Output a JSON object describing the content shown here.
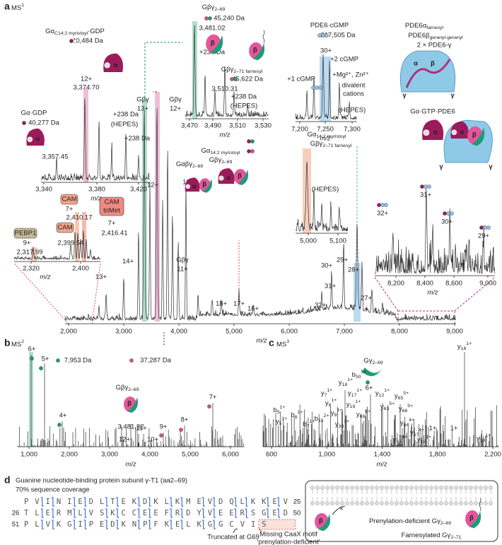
{
  "cartoon": {
    "alpha": "α",
    "beta": "β",
    "gamma": "γ"
  },
  "panel_a": {
    "label": "a",
    "title": {
      "text": "MS",
      "sup": "1"
    },
    "x_label": "m/z",
    "x_ticks": [
      "2,000",
      "3,000",
      "4,000",
      "5,000",
      "6,000",
      "7,000",
      "8,000",
      "9,000"
    ],
    "labels": [
      "Gβγ",
      "13+",
      "Gβγ",
      "12+",
      "13+",
      "14+",
      "12+",
      "11+",
      "Gβγ",
      "11+",
      "18+",
      "17+",
      "16+",
      "32+",
      "31+",
      "30+",
      "29+",
      "28+",
      "27+",
      {
        "text": "Gαβγ",
        "sub": "2–69"
      },
      {
        "text": "Gα",
        "sub": "14:2 myristoyl"
      },
      {
        "text": "Gβγ",
        "sub": "2–69"
      }
    ],
    "protein_labels": [
      {
        "text": "PDE6α",
        "sub": "farnesyl"
      },
      {
        "text": "PDE6β",
        "sub": "geranyl-geranyl"
      },
      "2 × PDE6-γ",
      "Gα·GTP·PDE6"
    ],
    "insets": [
      {
        "labels": [
          {
            "text": "Gα",
            "sub": "C14:2 myristoyl",
            "tail": "·GDP"
          },
          "40,484 Da",
          "12+",
          "3,374.70",
          "Gα·GDP",
          "40,277 Da",
          "+238 Da",
          "(HEPES)",
          "+238 Da",
          "3,357.45"
        ],
        "x_ticks": [
          "3,340",
          "3,380",
          "3,420"
        ],
        "x_label": "m/z"
      },
      {
        "labels": [
          {
            "text": "Gβγ",
            "sub": "2–69"
          },
          "45,240 Da",
          "3,481.02",
          "+238 Da",
          {
            "text": "Gβγ",
            "sub": "2–71 farnesyl"
          },
          "45,622 Da",
          "3,510.31",
          "+238 Da",
          "(HEPES)"
        ],
        "x_ticks": [
          "3,470",
          "3,490",
          "3,510",
          "3,530"
        ],
        "x_label": "m/z"
      },
      {
        "labels": [
          "PDE6·cGMP",
          "217,505 Da",
          "30+",
          "+2 cGMP",
          "+1 cGMP",
          "+Mg²⁺, Zn²⁺",
          "divalent",
          "cations",
          "(HEPES)"
        ],
        "x_ticks": [
          "7,200",
          "7,250",
          "7,300"
        ],
        "x_label": "m/z"
      },
      {
        "labels": [
          {
            "text": "Gα",
            "sub": "14:2 myristoyl"
          },
          {
            "text": "Gβγ",
            "sub": "2–71 farnesyl"
          },
          "(HEPES)"
        ],
        "x_ticks": [
          "5,000",
          "5,100"
        ]
      },
      {
        "labels": [
          "PEBP1",
          "9+",
          "2,317.99",
          "CAM",
          "7+",
          "2,410.17",
          "CAM",
          "2,399.54",
          "CAM",
          "triMet",
          "7+",
          "2,416.41"
        ],
        "x_ticks": [
          "2,320",
          "2,400"
        ],
        "x_label": "m/z"
      },
      {
        "labels": [
          "32+",
          "31+",
          "30+",
          "29+"
        ],
        "x_ticks": [
          "8,200",
          "8,400",
          "8,600",
          "9,000"
        ],
        "x_label": "m/z"
      }
    ]
  },
  "panel_b": {
    "label": "b",
    "title": {
      "text": "MS",
      "sup": "2"
    },
    "x_label": "m/z",
    "x_ticks": [
      "1,000",
      "2,000",
      "3,000",
      "4,000",
      "5,000",
      "6,000"
    ],
    "labels": [
      "6+",
      "5+",
      "7,953 Da",
      "37,287 Da",
      {
        "text": "Gβγ",
        "sub": "2–69"
      },
      "3,481.32",
      "8+",
      "7+",
      "4+",
      "11+",
      "12+",
      "10+",
      "9+"
    ]
  },
  "panel_c": {
    "label": "c",
    "title": {
      "text": "MS",
      "sup": "3"
    },
    "x_label": "m/z",
    "x_ticks": [
      "600",
      "1,000",
      "1,400",
      "1,800",
      "2,200"
    ],
    "labels": [
      {
        "text": "Gγ",
        "sub": "2–69"
      },
      "6+"
    ],
    "ions": [
      {
        "text": "y",
        "sub": "18",
        "sup": "1+"
      },
      {
        "text": "b",
        "sub": "5",
        "sup": "1+"
      },
      {
        "text": "y",
        "sub": "5",
        "sup": "1+"
      },
      {
        "text": "b",
        "sub": "6",
        "sup": "1+"
      },
      {
        "text": "b",
        "sub": "7",
        "sup": "1+"
      },
      {
        "text": "b",
        "sub": "15",
        "sup": "2+"
      },
      {
        "text": "y",
        "sub": "7",
        "sup": "1+"
      },
      {
        "text": "y",
        "sub": "8",
        "sup": "1+"
      },
      {
        "text": "y",
        "sub": "9",
        "sup": "1+"
      },
      {
        "text": "y",
        "sub": "30",
        "sup": "1+"
      },
      {
        "text": "y",
        "sub": "18",
        "sup": "1+"
      },
      {
        "text": "y",
        "sub": "17",
        "sup": "1+"
      },
      {
        "text": "y",
        "sub": "19",
        "sup": "1+"
      },
      {
        "text": "b",
        "sub": "50",
        "sup": "5+"
      },
      {
        "text": "y",
        "sub": "66",
        "sup": "6+"
      },
      {
        "text": "y",
        "sub": "12",
        "sup": "1+"
      },
      {
        "text": "y",
        "sub": "63",
        "sup": "5+"
      },
      {
        "text": "y",
        "sub": "65",
        "sup": "5+"
      },
      {
        "text": "y",
        "sub": "66",
        "sup": "5+"
      },
      {
        "text": "y",
        "sub": "54",
        "sup": "4+"
      },
      {
        "text": "y",
        "sub": "57",
        "sup": "4+"
      },
      {
        "text": "y",
        "sub": "55",
        "sup": "4+"
      },
      {
        "text": "y",
        "sub": "15",
        "sup": "1+"
      },
      {
        "text": "y",
        "sub": "19",
        "sup": "1+"
      },
      "1+",
      "1+"
    ]
  },
  "panel_d": {
    "label": "d",
    "title": "Guanine nucleotide-binding protein subunit γ-T1 (aa2–69)",
    "coverage": "70% sequence coverage",
    "rows": [
      {
        "sequence": "PVINIEDLTEKDKLKMEVDQLKKEV",
        "end": "25"
      },
      {
        "start": "26",
        "sequence": "TLERMLVSKCCEEFRDYVEERSGED",
        "end": "50"
      },
      {
        "start": "51",
        "sequence": "PLVKGIPEDKNPFKELKGGCVIS"
      }
    ],
    "annotations": [
      "Truncated at G69",
      "Missing CaaX motif",
      "‘prenylation-deficient’"
    ],
    "schematic_labels": [
      {
        "text": "Prenylation-deficient Gγ",
        "sub": "2–69"
      },
      {
        "text": "Farnesylated Gγ",
        "sub": "2–71"
      }
    ]
  }
}
